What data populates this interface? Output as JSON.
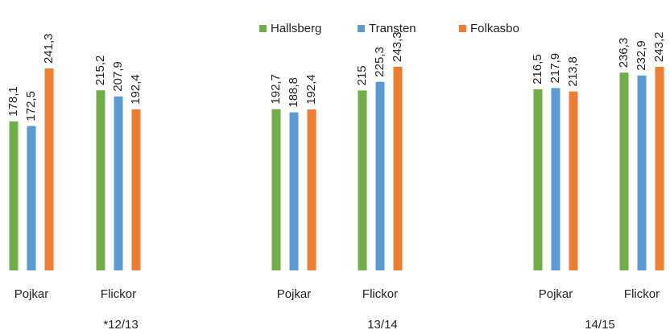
{
  "chart_data": {
    "type": "bar",
    "categories": [
      "Pojkar",
      "Flickor",
      "Pojkar",
      "Flickor",
      "Pojkar",
      "Flickor"
    ],
    "group_labels": [
      "*12/13",
      "13/14",
      "14/15"
    ],
    "series": [
      {
        "name": "Hallsberg",
        "color": "#70ad47",
        "values": [
          178.1,
          215.2,
          192.7,
          215,
          216.5,
          236.3
        ],
        "value_labels": [
          "178,1",
          "215,2",
          "192,7",
          "215",
          "216,5",
          "236,3"
        ]
      },
      {
        "name": "Transten",
        "color": "#5b9bd5",
        "values": [
          172.5,
          207.9,
          188.8,
          225.3,
          217.9,
          232.9
        ],
        "value_labels": [
          "172,5",
          "207,9",
          "188,8",
          "225,3",
          "217,9",
          "232,9"
        ]
      },
      {
        "name": "Folkasbo",
        "color": "#ed7d31",
        "values": [
          241.3,
          192.4,
          192.4,
          243.3,
          213.8,
          243.2
        ],
        "value_labels": [
          "241,3",
          "192,4",
          "192,4",
          "243,3",
          "213,8",
          "243,2"
        ]
      }
    ],
    "legend": "top"
  }
}
